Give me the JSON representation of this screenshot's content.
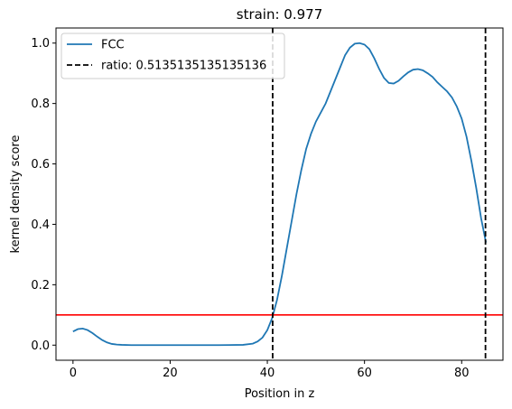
{
  "chart_data": {
    "type": "line",
    "title": "strain: 0.977",
    "xlabel": "Position in z",
    "ylabel": "kernel density score",
    "xlim": [
      -3.5,
      88.5
    ],
    "ylim": [
      -0.05,
      1.05
    ],
    "xticks": [
      0,
      20,
      40,
      60,
      80
    ],
    "yticks": [
      0.0,
      0.2,
      0.4,
      0.6,
      0.8,
      1.0
    ],
    "grid": false,
    "legend_position": "upper-left",
    "series": [
      {
        "name": "FCC",
        "style": "solid",
        "color": "#1f77b4",
        "x": [
          0,
          1,
          2,
          3,
          4,
          5,
          6,
          7,
          8,
          9,
          10,
          12,
          15,
          20,
          25,
          30,
          35,
          37,
          38,
          39,
          40,
          41,
          42,
          43,
          44,
          45,
          46,
          47,
          48,
          49,
          50,
          51,
          52,
          53,
          54,
          55,
          56,
          57,
          58,
          59,
          60,
          61,
          62,
          63,
          64,
          65,
          66,
          67,
          68,
          69,
          70,
          71,
          72,
          73,
          74,
          75,
          76,
          77,
          78,
          79,
          80,
          81,
          82,
          83,
          84,
          85
        ],
        "y": [
          0.045,
          0.053,
          0.055,
          0.05,
          0.04,
          0.028,
          0.017,
          0.009,
          0.004,
          0.002,
          0.001,
          0.0,
          0.0,
          0.0,
          0.0,
          0.0,
          0.001,
          0.005,
          0.012,
          0.025,
          0.05,
          0.09,
          0.15,
          0.23,
          0.32,
          0.41,
          0.5,
          0.58,
          0.65,
          0.7,
          0.74,
          0.77,
          0.8,
          0.84,
          0.88,
          0.92,
          0.96,
          0.985,
          0.998,
          1.0,
          0.995,
          0.98,
          0.95,
          0.915,
          0.885,
          0.868,
          0.866,
          0.875,
          0.89,
          0.903,
          0.912,
          0.914,
          0.91,
          0.9,
          0.888,
          0.87,
          0.855,
          0.84,
          0.82,
          0.79,
          0.75,
          0.69,
          0.61,
          0.52,
          0.42,
          0.34
        ]
      }
    ],
    "vlines": [
      {
        "name": "ratio: 0.5135135135135136",
        "x": [
          41.1,
          84.9
        ],
        "style": "dashed",
        "color": "#000000"
      }
    ],
    "hlines": [
      {
        "y": 0.1,
        "style": "solid",
        "color": "#ff0000"
      }
    ]
  }
}
